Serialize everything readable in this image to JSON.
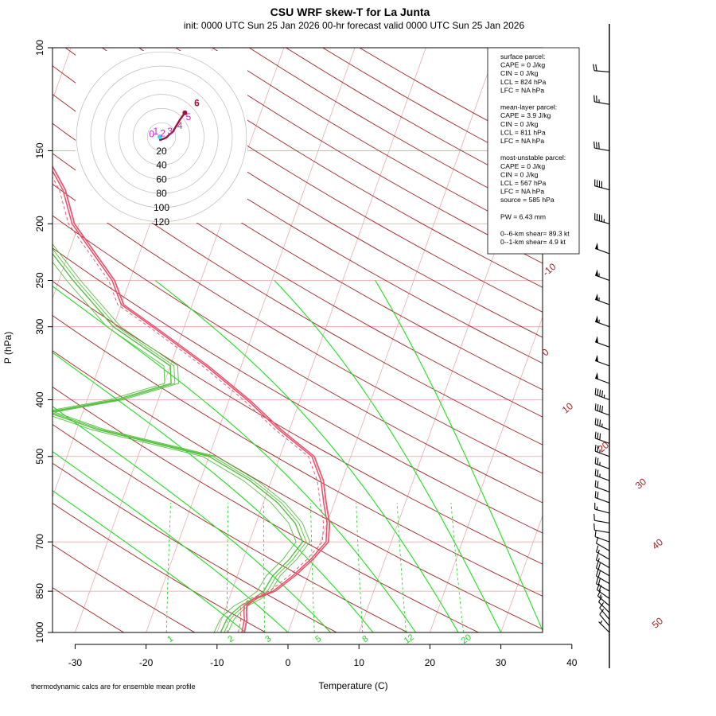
{
  "chart_data": {
    "type": "line",
    "title": "CSU WRF skew-T for La Junta",
    "subtitle": "init: 0000 UTC Sun 25 Jan 2026    00-hr forecast valid 0000 UTC Sun 25 Jan 2026",
    "xlabel": "Temperature (C)",
    "ylabel": "P (hPa)",
    "footnote": "thermodynamic calcs are for ensemble mean profile",
    "x_ticks": [
      -30,
      -20,
      -10,
      0,
      10,
      20,
      30,
      40
    ],
    "y_ticks": [
      100,
      150,
      200,
      250,
      300,
      400,
      500,
      700,
      850,
      1000
    ],
    "xlim": [
      -33,
      45
    ],
    "ylim": [
      1050,
      100
    ],
    "isobars": [
      100,
      150,
      200,
      250,
      300,
      400,
      500,
      700,
      850,
      1000
    ],
    "isotherm_labels": [
      -10,
      0,
      10,
      20,
      30,
      40,
      50
    ],
    "mixing_ratio_labels": [
      "1",
      "2",
      "3",
      "5",
      "8",
      "12",
      "20"
    ],
    "colors": {
      "temperature": "#e8506a",
      "dewpoint": "#55c040",
      "isotherm": "#e8a0a0",
      "isobar": "#e8a0a0",
      "dry_adiabat": "#a02424",
      "moist_adiabat": "#22dd22",
      "mixing_ratio": "#22cc22",
      "hodograph": "#a0123a"
    },
    "series": [
      {
        "kind": "temperature",
        "points": [
          [
            1000,
            -6.5
          ],
          [
            950,
            -6.8
          ],
          [
            925,
            -7.2
          ],
          [
            900,
            -7.5
          ],
          [
            875,
            -6.5
          ],
          [
            850,
            -4.2
          ],
          [
            800,
            -2.2
          ],
          [
            750,
            -0.5
          ],
          [
            700,
            0.8
          ],
          [
            650,
            0.0
          ],
          [
            600,
            -1.5
          ],
          [
            550,
            -3.0
          ],
          [
            500,
            -5.5
          ],
          [
            450,
            -11.5
          ],
          [
            400,
            -17.5
          ],
          [
            350,
            -25.0
          ],
          [
            300,
            -34.5
          ],
          [
            275,
            -40.0
          ],
          [
            250,
            -42.5
          ],
          [
            225,
            -46.5
          ],
          [
            200,
            -51.0
          ],
          [
            175,
            -54.0
          ],
          [
            150,
            -59.0
          ],
          [
            125,
            -66.0
          ],
          [
            110,
            -72.0
          ]
        ]
      },
      {
        "kind": "dewpoint",
        "points": [
          [
            1000,
            -9.5
          ],
          [
            950,
            -9.3
          ],
          [
            925,
            -8.8
          ],
          [
            900,
            -8.0
          ],
          [
            875,
            -6.5
          ],
          [
            850,
            -5.5
          ],
          [
            800,
            -5.0
          ],
          [
            750,
            -3.5
          ],
          [
            700,
            -2.5
          ],
          [
            650,
            -4.5
          ],
          [
            600,
            -8.0
          ],
          [
            550,
            -13.0
          ],
          [
            500,
            -20.0
          ],
          [
            450,
            -37.0
          ],
          [
            420,
            -45.0
          ],
          [
            400,
            -36.0
          ],
          [
            375,
            -29.0
          ],
          [
            350,
            -30.0
          ],
          [
            300,
            -40.0
          ],
          [
            250,
            -48.0
          ],
          [
            200,
            -57.0
          ],
          [
            175,
            -72.0
          ],
          [
            150,
            -75.0
          ],
          [
            140,
            -80.0
          ]
        ]
      }
    ],
    "dry_adiabats_theta_K": [
      230,
      240,
      250,
      260,
      270,
      280,
      290,
      300,
      310,
      320,
      330,
      340,
      350,
      360,
      370,
      380,
      390,
      400,
      410,
      420,
      430,
      440,
      450,
      460,
      470,
      480,
      490
    ],
    "moist_adiabats_start_C": [
      -6,
      0,
      6,
      12,
      18,
      24,
      30,
      36
    ],
    "mixing_ratios_gkg": [
      1,
      2,
      3,
      5,
      8,
      12,
      20
    ],
    "hodograph": {
      "ring_labels": [
        "20",
        "40",
        "60",
        "80",
        "100",
        "120"
      ],
      "ring_values_kt": [
        20,
        40,
        60,
        80,
        100,
        120
      ],
      "height_labels": [
        "0",
        "1",
        "2",
        "3",
        "4",
        "5",
        "6"
      ],
      "points_uv_kt": [
        [
          -3,
          -5
        ],
        [
          2,
          -3
        ],
        [
          7,
          -1
        ],
        [
          11,
          3
        ],
        [
          16,
          7
        ],
        [
          20,
          14
        ],
        [
          26,
          24
        ],
        [
          33,
          34
        ]
      ]
    },
    "wind_barbs": [
      {
        "p": 1000,
        "kt": 5,
        "dir": 315
      },
      {
        "p": 975,
        "kt": 8,
        "dir": 320
      },
      {
        "p": 950,
        "kt": 10,
        "dir": 320
      },
      {
        "p": 925,
        "kt": 12,
        "dir": 315
      },
      {
        "p": 900,
        "kt": 15,
        "dir": 310
      },
      {
        "p": 875,
        "kt": 18,
        "dir": 305
      },
      {
        "p": 850,
        "kt": 20,
        "dir": 300
      },
      {
        "p": 825,
        "kt": 20,
        "dir": 300
      },
      {
        "p": 800,
        "kt": 20,
        "dir": 300
      },
      {
        "p": 775,
        "kt": 15,
        "dir": 300
      },
      {
        "p": 750,
        "kt": 15,
        "dir": 300
      },
      {
        "p": 725,
        "kt": 10,
        "dir": 300
      },
      {
        "p": 700,
        "kt": 10,
        "dir": 290
      },
      {
        "p": 675,
        "kt": 10,
        "dir": 280
      },
      {
        "p": 650,
        "kt": 10,
        "dir": 280
      },
      {
        "p": 625,
        "kt": 15,
        "dir": 285
      },
      {
        "p": 600,
        "kt": 20,
        "dir": 290
      },
      {
        "p": 575,
        "kt": 20,
        "dir": 290
      },
      {
        "p": 550,
        "kt": 25,
        "dir": 290
      },
      {
        "p": 525,
        "kt": 25,
        "dir": 290
      },
      {
        "p": 500,
        "kt": 25,
        "dir": 290
      },
      {
        "p": 475,
        "kt": 30,
        "dir": 290
      },
      {
        "p": 450,
        "kt": 35,
        "dir": 290
      },
      {
        "p": 425,
        "kt": 40,
        "dir": 290
      },
      {
        "p": 400,
        "kt": 45,
        "dir": 290
      },
      {
        "p": 375,
        "kt": 50,
        "dir": 290
      },
      {
        "p": 350,
        "kt": 50,
        "dir": 290
      },
      {
        "p": 325,
        "kt": 50,
        "dir": 290
      },
      {
        "p": 300,
        "kt": 55,
        "dir": 290
      },
      {
        "p": 275,
        "kt": 55,
        "dir": 290
      },
      {
        "p": 250,
        "kt": 55,
        "dir": 290
      },
      {
        "p": 225,
        "kt": 50,
        "dir": 290
      },
      {
        "p": 200,
        "kt": 45,
        "dir": 285
      },
      {
        "p": 175,
        "kt": 40,
        "dir": 285
      },
      {
        "p": 150,
        "kt": 30,
        "dir": 280
      },
      {
        "p": 125,
        "kt": 25,
        "dir": 280
      },
      {
        "p": 110,
        "kt": 20,
        "dir": 275
      }
    ],
    "parcel_box": {
      "lines": [
        "surface parcel:",
        "CAPE = 0 J/kg",
        "CIN = 0 J/kg",
        "LCL = 824 hPa",
        "LFC = NA hPa",
        "",
        "mean-layer parcel:",
        "CAPE = 3.9 J/kg",
        "CIN = 0 J/kg",
        "LCL = 811 hPa",
        "LFC = NA hPa",
        "",
        "most-unstable parcel:",
        "CAPE = 0 J/kg",
        "CIN = 0 J/kg",
        "LCL = 567 hPa",
        "LFC = NA hPa",
        "source = 585 hPa",
        "",
        "PW =  6.43 mm",
        "",
        "0--6-km shear= 89.3 kt",
        "0--1-km shear= 4.9 kt"
      ]
    }
  }
}
